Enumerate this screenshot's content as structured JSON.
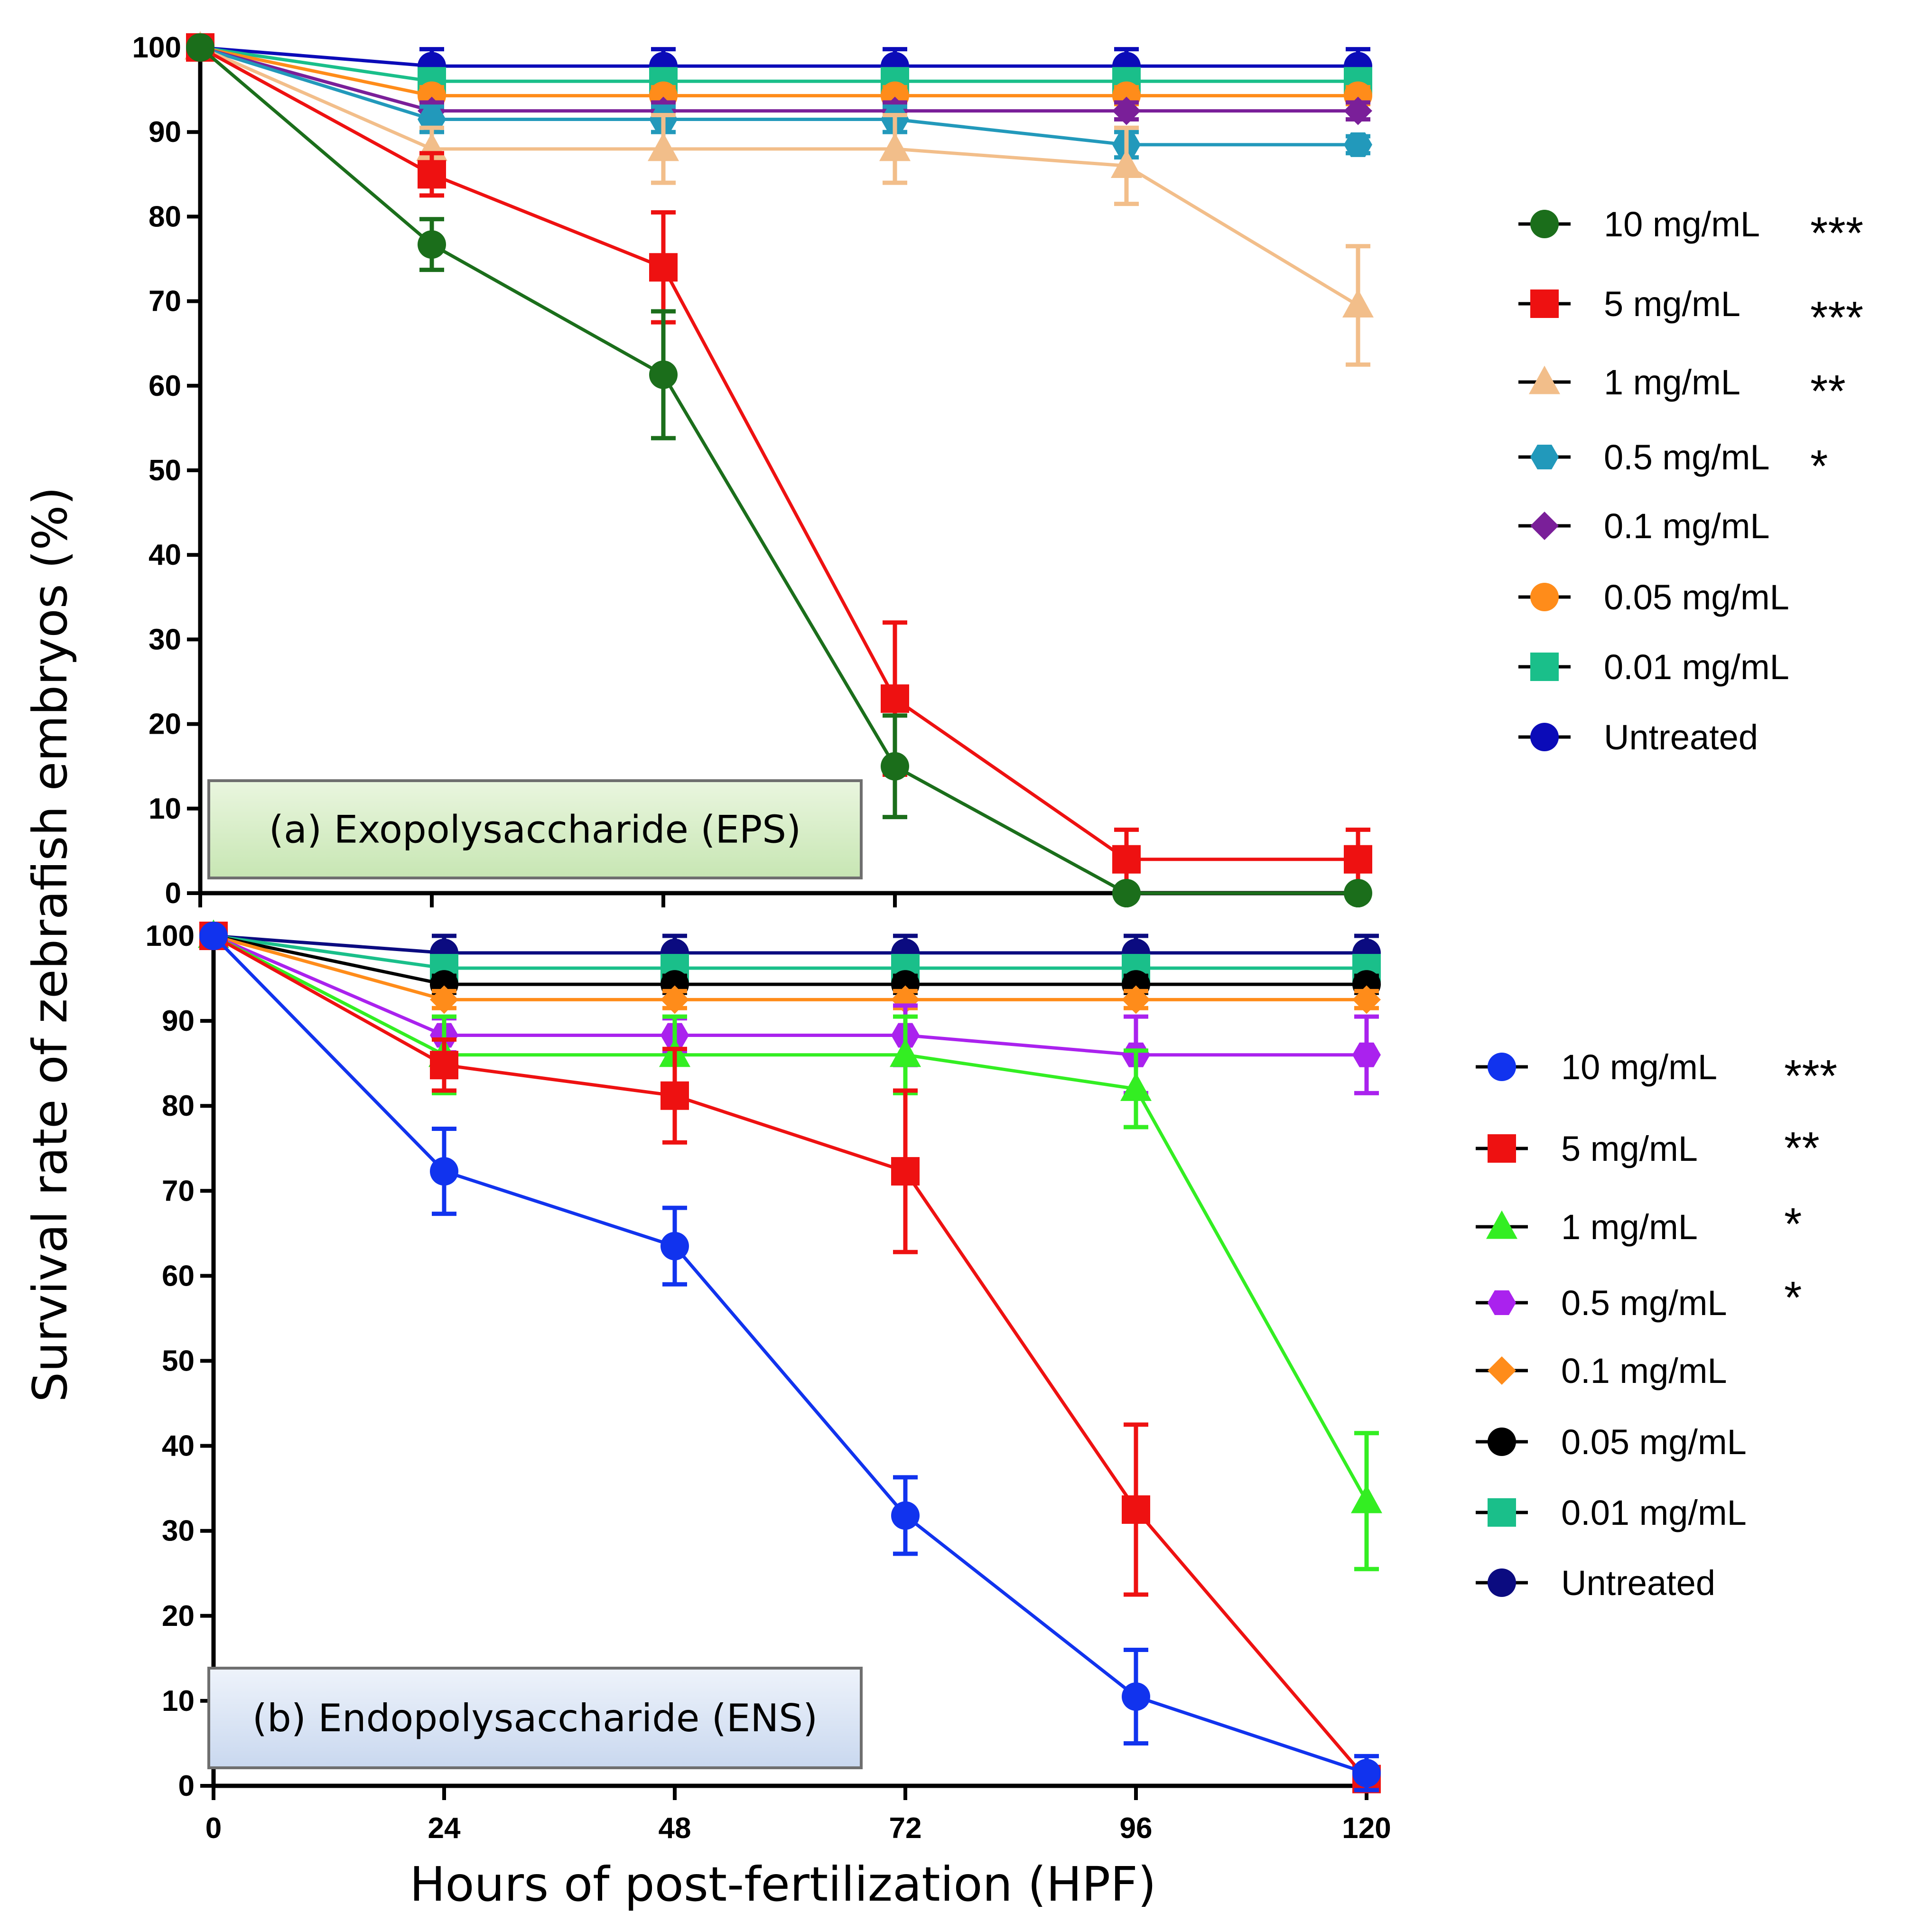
{
  "figure": {
    "ylabel": "Survival rate of zebrafish embryos (%)",
    "xlabel": "Hours of post-fertilization (HPF)"
  },
  "chart_data": [
    {
      "type": "line",
      "title": "(a) Exopolysaccharide (EPS)",
      "x": [
        0,
        24,
        48,
        72,
        96,
        120
      ],
      "xticks": [
        "0",
        "24",
        "48",
        "72",
        "96",
        "120"
      ],
      "yticks": [
        "0",
        "10",
        "20",
        "30",
        "40",
        "50",
        "60",
        "70",
        "80",
        "90",
        "100"
      ],
      "ylim": [
        0,
        100
      ],
      "grid": false,
      "legend_position": "right",
      "series": [
        {
          "name": "10 mg/mL",
          "sig": "***",
          "color": "#1b6e1b",
          "marker": "circle",
          "values": [
            100,
            76.7,
            61.3,
            15,
            0,
            0
          ],
          "errors": [
            0,
            3,
            7.5,
            6,
            0,
            0
          ]
        },
        {
          "name": "5 mg/mL",
          "sig": "***",
          "color": "#ee1111",
          "marker": "square",
          "values": [
            100,
            85,
            74,
            23,
            4,
            4
          ],
          "errors": [
            0,
            2.5,
            6.5,
            9,
            3.5,
            3.5
          ]
        },
        {
          "name": "1 mg/mL",
          "sig": "**",
          "color": "#f2be8a",
          "marker": "triangle",
          "values": [
            100,
            88,
            88,
            88,
            86,
            69.5
          ],
          "errors": [
            0,
            2.5,
            4,
            4,
            4.5,
            7
          ]
        },
        {
          "name": "0.5 mg/mL",
          "sig": "*",
          "color": "#2299bb",
          "marker": "hexagon",
          "values": [
            100,
            91.5,
            91.5,
            91.5,
            88.5,
            88.5
          ],
          "errors": [
            0,
            1.5,
            1.5,
            1.5,
            1.5,
            1
          ]
        },
        {
          "name": "0.1 mg/mL",
          "sig": "",
          "color": "#7a1f99",
          "marker": "diamond",
          "values": [
            100,
            92.5,
            92.5,
            92.5,
            92.5,
            92.5
          ],
          "errors": [
            0,
            1,
            1,
            1,
            1,
            1
          ]
        },
        {
          "name": "0.05 mg/mL",
          "sig": "",
          "color": "#ff8c1a",
          "marker": "circle",
          "values": [
            100,
            94.3,
            94.3,
            94.3,
            94.3,
            94.3
          ],
          "errors": [
            0,
            1,
            1,
            1,
            1,
            1
          ]
        },
        {
          "name": "0.01 mg/mL",
          "sig": "",
          "color": "#1abf8a",
          "marker": "square",
          "values": [
            100,
            96,
            96,
            96,
            96,
            96
          ],
          "errors": [
            0,
            1,
            1,
            1,
            1,
            1
          ]
        },
        {
          "name": "Untreated",
          "sig": "",
          "color": "#0b0bb8",
          "marker": "circle",
          "values": [
            100,
            97.8,
            97.8,
            97.8,
            97.8,
            97.8
          ],
          "errors": [
            0,
            2,
            2,
            2,
            2,
            2
          ]
        }
      ]
    },
    {
      "type": "line",
      "title": "(b) Endopolysaccharide (ENS)",
      "x": [
        0,
        24,
        48,
        72,
        96,
        120
      ],
      "xticks": [
        "0",
        "24",
        "48",
        "72",
        "96",
        "120"
      ],
      "yticks": [
        "0",
        "10",
        "20",
        "30",
        "40",
        "50",
        "60",
        "70",
        "80",
        "90",
        "100"
      ],
      "ylim": [
        0,
        100
      ],
      "grid": false,
      "legend_position": "right",
      "series": [
        {
          "name": "10 mg/mL",
          "sig": "***",
          "color": "#1133ee",
          "marker": "circle",
          "values": [
            100,
            72.3,
            63.5,
            31.8,
            10.5,
            1.5
          ],
          "errors": [
            0,
            5,
            4.5,
            4.5,
            5.5,
            2
          ]
        },
        {
          "name": "5 mg/mL",
          "sig": "**",
          "color": "#ee1111",
          "marker": "square",
          "values": [
            100,
            84.8,
            81.2,
            72.3,
            32.5,
            0.8
          ],
          "errors": [
            0,
            3,
            5.5,
            9.5,
            10,
            0.5
          ]
        },
        {
          "name": "1 mg/mL",
          "sig": "*",
          "color": "#33ee22",
          "marker": "triangle",
          "values": [
            100,
            86,
            86,
            86,
            82,
            33.5
          ],
          "errors": [
            0,
            4.5,
            4.5,
            4.5,
            4.5,
            8
          ]
        },
        {
          "name": "0.5 mg/mL",
          "sig": "*",
          "color": "#aa22ee",
          "marker": "hexagon",
          "values": [
            100,
            88.3,
            88.3,
            88.3,
            86,
            86
          ],
          "errors": [
            0,
            2,
            2,
            3.5,
            4.5,
            4.5
          ]
        },
        {
          "name": "0.1 mg/mL",
          "sig": "",
          "color": "#ff8c1a",
          "marker": "diamond",
          "values": [
            100,
            92.5,
            92.5,
            92.5,
            92.5,
            92.5
          ],
          "errors": [
            0,
            1,
            1,
            1,
            1,
            1
          ]
        },
        {
          "name": "0.05 mg/mL",
          "sig": "",
          "color": "#000000",
          "marker": "circle",
          "values": [
            100,
            94.3,
            94.3,
            94.3,
            94.3,
            94.3
          ],
          "errors": [
            0,
            1,
            1,
            1,
            1,
            1
          ]
        },
        {
          "name": "0.01 mg/mL",
          "sig": "",
          "color": "#1abf8a",
          "marker": "square",
          "values": [
            100,
            96.2,
            96.2,
            96.2,
            96.2,
            96.2
          ],
          "errors": [
            0,
            1,
            1,
            1,
            1,
            1
          ]
        },
        {
          "name": "Untreated",
          "sig": "",
          "color": "#0b0b80",
          "marker": "circle",
          "values": [
            100,
            98,
            98,
            98,
            98,
            98
          ],
          "errors": [
            0,
            2,
            2,
            2,
            2,
            2
          ]
        }
      ]
    }
  ]
}
